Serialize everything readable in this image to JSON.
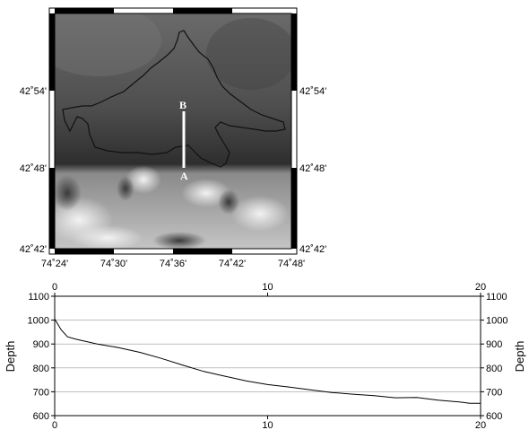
{
  "map": {
    "lat_labels": [
      "42˚54'",
      "42˚48'",
      "42˚42'"
    ],
    "lon_labels": [
      "74˚24'",
      "74˚30'",
      "74˚36'",
      "74˚42'",
      "74˚48'"
    ],
    "profile_start_label": "A",
    "profile_end_label": "B",
    "frame_colors": [
      "#000000",
      "#ffffff"
    ]
  },
  "chart_data": {
    "type": "line",
    "xlim": [
      0,
      20
    ],
    "ylim": [
      600,
      1100
    ],
    "ylabel": "Depth",
    "x_ticks": [
      0,
      10,
      20
    ],
    "y_ticks": [
      600,
      700,
      800,
      900,
      1000,
      1100
    ],
    "grid": "horizontal",
    "line_color": "#000000",
    "series": [
      {
        "x": [
          0,
          0.3,
          0.6,
          1,
          2,
          3,
          4,
          5,
          6,
          7,
          8,
          9,
          10,
          11,
          12,
          13,
          14,
          15,
          16,
          17,
          18,
          19,
          19.5,
          20
        ],
        "y": [
          1005,
          960,
          930,
          920,
          900,
          885,
          865,
          840,
          812,
          785,
          765,
          745,
          730,
          720,
          708,
          697,
          690,
          684,
          675,
          676,
          665,
          657,
          652,
          652
        ]
      }
    ]
  }
}
